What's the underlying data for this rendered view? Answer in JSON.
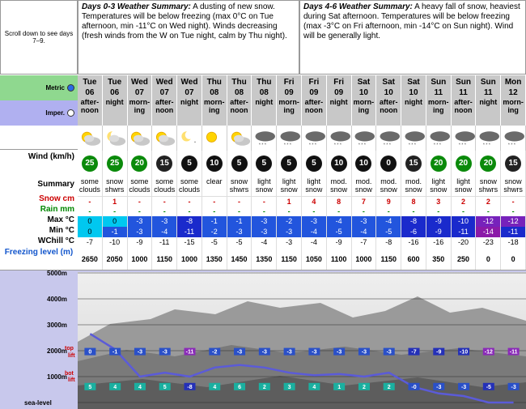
{
  "scroll_hint": "Scroll down to see days 7–9.",
  "summaries": [
    {
      "title": "Days 0-3 Weather Summary:",
      "text": " A dusting of new snow. Temperatures will be below freezing (max 0°C on Tue afternoon, min -11°C on Wed night). Winds decreasing (fresh winds from the W on Tue night, calm by Thu night)."
    },
    {
      "title": "Days 4-6 Weather Summary:",
      "text": " A heavy fall of snow, heaviest during Sat afternoon. Temperatures will be below freezing (max -3°C on Fri afternoon, min -14°C on Sun night). Wind will be generally light."
    }
  ],
  "units": {
    "metric": "Metric",
    "imperial": "Imper.",
    "selected": "metric"
  },
  "labels": {
    "wind": "Wind (km/h)",
    "summary": "Summary",
    "snow": "Snow cm",
    "rain": "Rain mm",
    "max": "Max °C",
    "min": "Min °C",
    "wchill": "WChill °C",
    "freezing": "Freezing level (m)"
  },
  "colors": {
    "snow": "#cc0000",
    "rain": "#008800",
    "freeze": "#1155cc",
    "panel": "#c8c8ec"
  },
  "periods": [
    {
      "day": "Tue",
      "date": "06",
      "time": "after-noon",
      "icon": "sun-cloud",
      "wind": 25,
      "summary": "some clouds",
      "snow": "-",
      "rain": "-",
      "max": "0",
      "min": "0",
      "wchill": "-7",
      "fl": "2650"
    },
    {
      "day": "Tue",
      "date": "06",
      "time": "night",
      "icon": "moon-cloud",
      "wind": 25,
      "summary": "snow shwrs",
      "snow": "1",
      "rain": "-",
      "max": "0",
      "min": "-1",
      "wchill": "-10",
      "fl": "2050"
    },
    {
      "day": "Wed",
      "date": "07",
      "time": "morn-ing",
      "icon": "sun-cloud",
      "wind": 20,
      "summary": "some clouds",
      "snow": "-",
      "rain": "-",
      "max": "-3",
      "min": "-3",
      "wchill": "-9",
      "fl": "1000"
    },
    {
      "day": "Wed",
      "date": "07",
      "time": "after-noon",
      "icon": "sun-cloud",
      "wind": 15,
      "summary": "some clouds",
      "snow": "-",
      "rain": "-",
      "max": "-3",
      "min": "-4",
      "wchill": "-11",
      "fl": "1150"
    },
    {
      "day": "Wed",
      "date": "07",
      "time": "night",
      "icon": "moon",
      "wind": 5,
      "summary": "some clouds",
      "snow": "-",
      "rain": "-",
      "max": "-8",
      "min": "-11",
      "wchill": "-15",
      "fl": "1000"
    },
    {
      "day": "Thu",
      "date": "08",
      "time": "morn-ing",
      "icon": "sun",
      "wind": 10,
      "summary": "clear",
      "snow": "-",
      "rain": "-",
      "max": "-1",
      "min": "-2",
      "wchill": "-5",
      "fl": "1350"
    },
    {
      "day": "Thu",
      "date": "08",
      "time": "after-noon",
      "icon": "sun-cloud",
      "wind": 5,
      "summary": "snow shwrs",
      "snow": "-",
      "rain": "-",
      "max": "-1",
      "min": "-3",
      "wchill": "-5",
      "fl": "1450"
    },
    {
      "day": "Thu",
      "date": "08",
      "time": "night",
      "icon": "cloud-snow",
      "wind": 5,
      "summary": "light snow",
      "snow": "-",
      "rain": "-",
      "max": "-3",
      "min": "-3",
      "wchill": "-4",
      "fl": "1350"
    },
    {
      "day": "Fri",
      "date": "09",
      "time": "morn-ing",
      "icon": "cloud-snow",
      "wind": 5,
      "summary": "light snow",
      "snow": "1",
      "rain": "-",
      "max": "-2",
      "min": "-3",
      "wchill": "-3",
      "fl": "1150"
    },
    {
      "day": "Fri",
      "date": "09",
      "time": "after-noon",
      "icon": "cloud-snow",
      "wind": 5,
      "summary": "light snow",
      "snow": "4",
      "rain": "-",
      "max": "-3",
      "min": "-4",
      "wchill": "-4",
      "fl": "1050"
    },
    {
      "day": "Fri",
      "date": "09",
      "time": "night",
      "icon": "cloud-snow",
      "wind": 10,
      "summary": "mod. snow",
      "snow": "8",
      "rain": "-",
      "max": "-4",
      "min": "-5",
      "wchill": "-9",
      "fl": "1100"
    },
    {
      "day": "Sat",
      "date": "10",
      "time": "morn-ing",
      "icon": "cloud-snow",
      "wind": 10,
      "summary": "mod. snow",
      "snow": "7",
      "rain": "-",
      "max": "-3",
      "min": "-4",
      "wchill": "-7",
      "fl": "1000"
    },
    {
      "day": "Sat",
      "date": "10",
      "time": "after-noon",
      "icon": "cloud-snow",
      "wind": 0,
      "summary": "mod. snow",
      "snow": "9",
      "rain": "-",
      "max": "-4",
      "min": "-5",
      "wchill": "-8",
      "fl": "1150"
    },
    {
      "day": "Sat",
      "date": "10",
      "time": "night",
      "icon": "cloud-snow",
      "wind": 15,
      "summary": "mod. snow",
      "snow": "8",
      "rain": "-",
      "max": "-8",
      "min": "-6",
      "wchill": "-16",
      "fl": "600"
    },
    {
      "day": "Sun",
      "date": "11",
      "time": "morn-ing",
      "icon": "cloud-snow",
      "wind": 20,
      "summary": "light snow",
      "snow": "3",
      "rain": "-",
      "max": "-9",
      "min": "-9",
      "wchill": "-16",
      "fl": "350"
    },
    {
      "day": "Sun",
      "date": "11",
      "time": "after-noon",
      "icon": "cloud-snow",
      "wind": 20,
      "summary": "light snow",
      "snow": "2",
      "rain": "-",
      "max": "-10",
      "min": "-11",
      "wchill": "-20",
      "fl": "250"
    },
    {
      "day": "Sun",
      "date": "11",
      "time": "night",
      "icon": "cloud-snow",
      "wind": 20,
      "summary": "snow shwrs",
      "snow": "2",
      "rain": "-",
      "max": "-12",
      "min": "-14",
      "wchill": "-23",
      "fl": "0"
    },
    {
      "day": "Mon",
      "date": "12",
      "time": "morn-ing",
      "icon": "cloud-snow",
      "wind": 15,
      "summary": "snow shwrs",
      "snow": "-",
      "rain": "-",
      "max": "-12",
      "min": "-11",
      "wchill": "-18",
      "fl": "0"
    }
  ],
  "profile": {
    "altitude_labels": [
      "5000m",
      "4000m",
      "3000m",
      "2000m",
      "1000m",
      "sea-level"
    ],
    "top_label": "top lift",
    "bot_label": "bot lift",
    "top_lift_temps": [
      "0",
      "-1",
      "-3",
      "-3",
      "-11",
      "-2",
      "-3",
      "-3",
      "-3",
      "-3",
      "-3",
      "-3",
      "-3",
      "-7",
      "-9",
      "-10",
      "-12",
      "-11"
    ],
    "bot_lift_temps": [
      "5",
      "4",
      "4",
      "5",
      "-8",
      "4",
      "6",
      "2",
      "3",
      "4",
      "1",
      "2",
      "2",
      "-0",
      "-3",
      "-3",
      "-5",
      "-3"
    ]
  }
}
